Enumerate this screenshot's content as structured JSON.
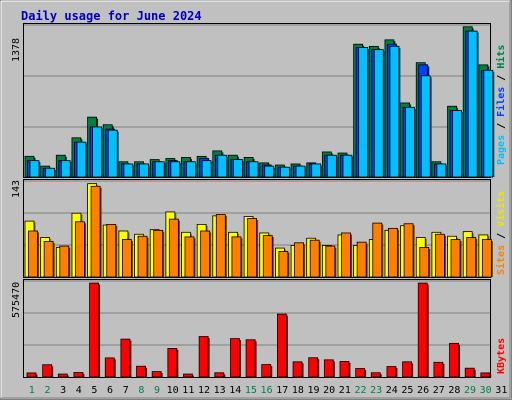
{
  "colors": {
    "background": "#c0c0c0",
    "title": "#0000c0",
    "hits_front": "#008040",
    "files_front": "#0040ff",
    "pages_front": "#00c0ff",
    "visits_front": "#ffff00",
    "sites_front": "#ff8000",
    "kbytes_front": "#ff0000",
    "weekend_label": "#00804c",
    "weekday_label": "#000000"
  },
  "chart_data": {
    "type": "bar",
    "title": "Daily usage for June 2024",
    "categories": [
      "1",
      "2",
      "3",
      "4",
      "5",
      "6",
      "7",
      "8",
      "9",
      "10",
      "11",
      "12",
      "13",
      "14",
      "15",
      "16",
      "17",
      "18",
      "19",
      "20",
      "21",
      "22",
      "23",
      "24",
      "25",
      "26",
      "27",
      "28",
      "29",
      "30",
      "31"
    ],
    "weekend_days": [
      "1",
      "2",
      "8",
      "9",
      "15",
      "16",
      "22",
      "23",
      "29",
      "30"
    ],
    "panels": [
      {
        "max_label": "1378",
        "ylim": [
          0,
          1378
        ],
        "legend": [
          "Pages",
          "Files",
          "Hits"
        ],
        "series": [
          {
            "name": "Hits",
            "color": "#008040",
            "values": [
              190,
              100,
              200,
              360,
              550,
              480,
              140,
              140,
              160,
              170,
              180,
              190,
              240,
              200,
              180,
              130,
              110,
              120,
              130,
              230,
              220,
              1220,
              1200,
              1260,
              680,
              1050,
              140,
              650,
              1380,
              1030,
              0
            ]
          },
          {
            "name": "Files",
            "color": "#0040ff",
            "values": [
              150,
              80,
              150,
              320,
              460,
              440,
              120,
              120,
              140,
              150,
              140,
              170,
              200,
              160,
              140,
              110,
              90,
              100,
              120,
              200,
              200,
              1190,
              1170,
              1220,
              640,
              1030,
              120,
              610,
              1340,
              980,
              0
            ]
          },
          {
            "name": "Pages",
            "color": "#00c0ff",
            "values": [
              150,
              80,
              150,
              320,
              460,
              430,
              120,
              120,
              140,
              140,
              140,
              150,
              200,
              160,
              140,
              100,
              90,
              100,
              120,
              200,
              200,
              1190,
              1170,
              1200,
              640,
              930,
              120,
              610,
              1340,
              980,
              0
            ]
          }
        ]
      },
      {
        "max_label": "143",
        "ylim": [
          0,
          143
        ],
        "legend": [
          "Sites",
          "Visits"
        ],
        "series": [
          {
            "name": "Visits",
            "color": "#ffff00",
            "values": [
              85,
              60,
              45,
              97,
              142,
              79,
              70,
              65,
              72,
              99,
              68,
              80,
              93,
              68,
              92,
              67,
              44,
              48,
              59,
              48,
              64,
              48,
              57,
              71,
              78,
              60,
              68,
              62,
              69,
              64,
              0
            ]
          },
          {
            "name": "Sites",
            "color": "#ff8000",
            "values": [
              70,
              54,
              47,
              84,
              138,
              80,
              57,
              62,
              71,
              88,
              61,
              70,
              95,
              61,
              89,
              63,
              39,
              52,
              56,
              47,
              67,
              53,
              82,
              74,
              81,
              45,
              65,
              57,
              60,
              57,
              0
            ]
          }
        ]
      },
      {
        "max_label": "575470",
        "ylim": [
          0,
          575470
        ],
        "legend": [
          "KBytes"
        ],
        "series": [
          {
            "name": "KBytes",
            "color": "#ff0000",
            "values": [
              25000,
              75000,
              18000,
              28000,
              575000,
              117000,
              232000,
              66000,
              33000,
              175000,
              18000,
              248000,
              26000,
              235000,
              228000,
              76000,
              385000,
              93000,
              118000,
              105000,
              95000,
              52000,
              26000,
              64000,
              93000,
              575000,
              90000,
              206000,
              54000,
              25000,
              0
            ]
          }
        ]
      }
    ]
  }
}
